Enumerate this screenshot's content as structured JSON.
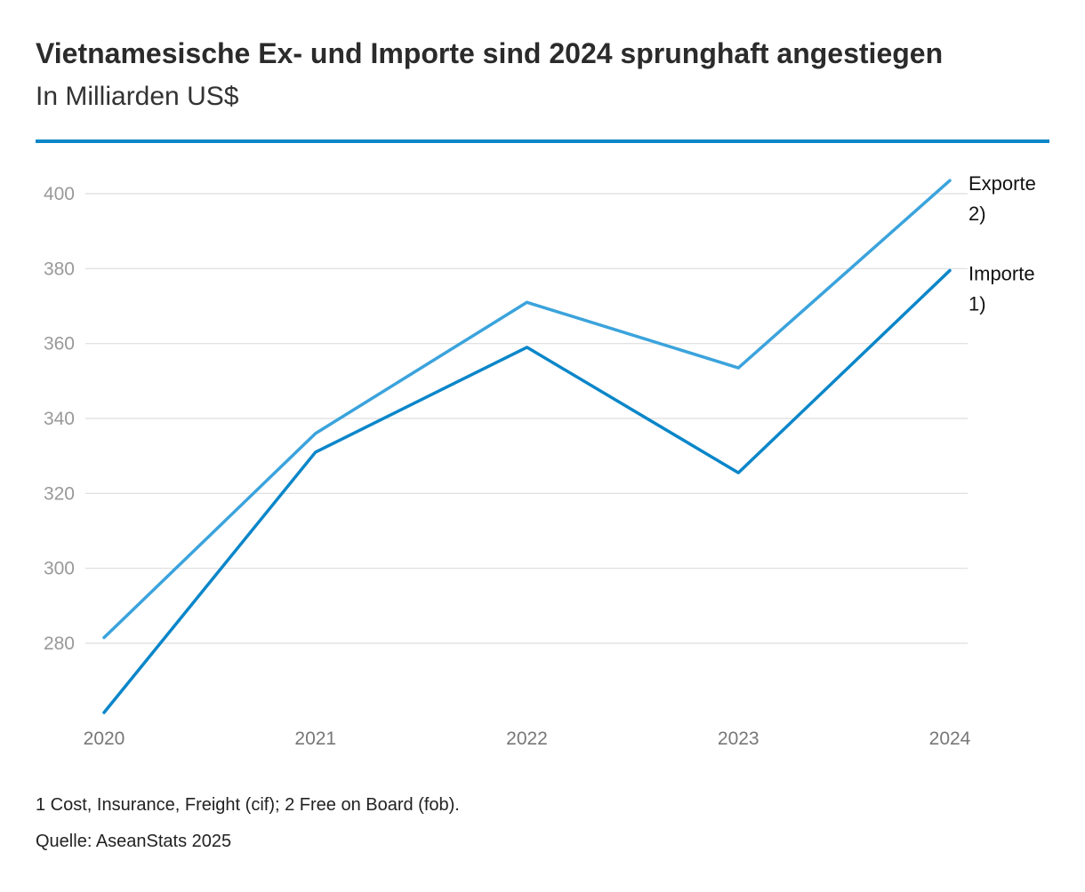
{
  "title": "Vietnamesische Ex- und Importe sind 2024 sprunghaft angestiegen",
  "subtitle": "In Milliarden US$",
  "footnote": "1 Cost, Insurance, Freight (cif); 2 Free on Board (fob).",
  "source": "Quelle: AseanStats 2025",
  "colors": {
    "exports": "#3ba3dc",
    "imports": "#0a86c9",
    "rule": "#0a86c9",
    "grid": "#dddddd",
    "tick": "#999999"
  },
  "chart_data": {
    "type": "line",
    "x": [
      "2020",
      "2021",
      "2022",
      "2023",
      "2024"
    ],
    "yticks": [
      "280",
      "300",
      "320",
      "340",
      "360",
      "380",
      "400"
    ],
    "ylim": [
      261,
      412
    ],
    "grid": true,
    "legend": "end-of-line labels",
    "series": [
      {
        "name": "Exporte 2)",
        "label_lines": [
          "Exporte",
          "2)"
        ],
        "values": [
          281.5,
          336,
          371,
          353.5,
          403.5
        ]
      },
      {
        "name": "Importe 1)",
        "label_lines": [
          "Importe",
          "1)"
        ],
        "values": [
          261.5,
          331,
          359,
          325.5,
          379.5
        ]
      }
    ]
  }
}
